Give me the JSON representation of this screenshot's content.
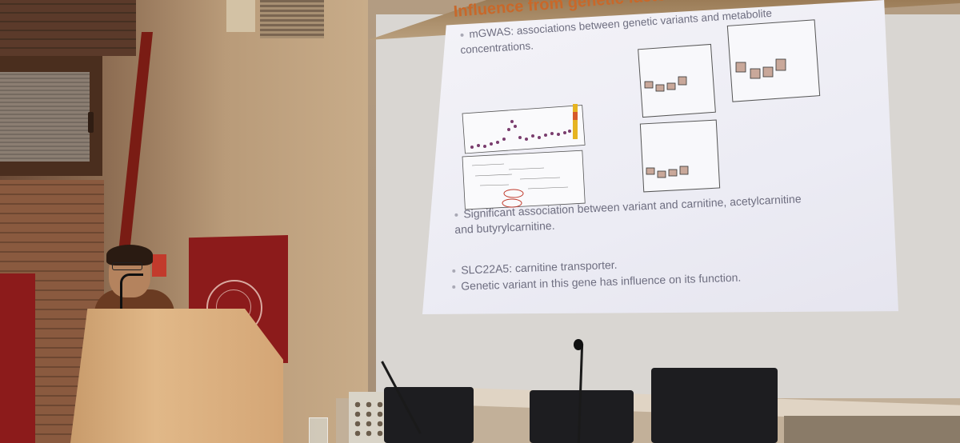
{
  "slide": {
    "title": "Influence from genetic factors",
    "bullets": [
      "mGWAS: associations between genetic variants and metabolite",
      "concentrations.",
      "Significant association between variant and carnitine, acetylcarnitine",
      "and butyrylcarnitine.",
      "SLC22A5: carnitine transporter.",
      "Genetic variant in this gene has influence on its function."
    ]
  },
  "colors": {
    "title_accent": "#c8682a",
    "banner_red": "#8c1b1b",
    "slide_text": "#6e6e80"
  }
}
